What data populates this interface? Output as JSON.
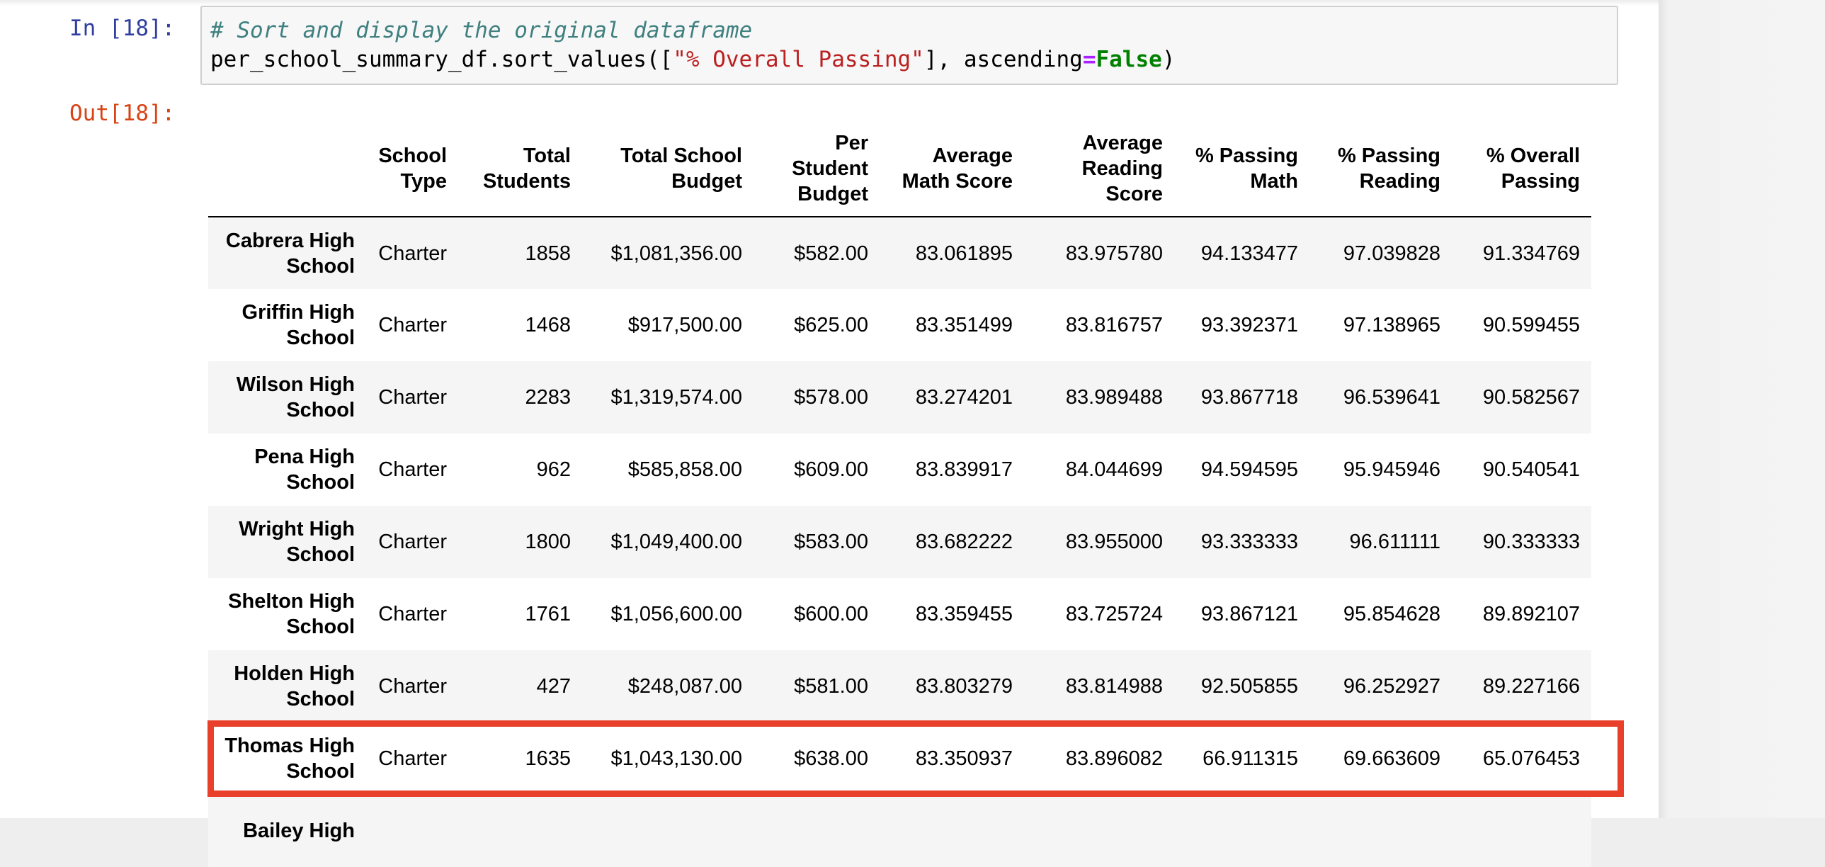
{
  "cell": {
    "in_prompt": "In [18]:",
    "out_prompt": "Out[18]:",
    "code": {
      "comment": "# Sort and display the original dataframe",
      "line2_prefix": "per_school_summary_df.sort_values([",
      "line2_string": "\"% Overall Passing\"",
      "line2_mid": "], ascending",
      "line2_op": "=",
      "line2_kw": "False",
      "line2_suffix": ")"
    }
  },
  "table": {
    "columns": [
      "School Type",
      "Total Students",
      "Total School Budget",
      "Per Student Budget",
      "Average Math Score",
      "Average Reading Score",
      "% Passing Math",
      "% Passing Reading",
      "% Overall Passing"
    ],
    "rows": [
      {
        "name": "Cabrera High School",
        "cells": [
          "Charter",
          "1858",
          "$1,081,356.00",
          "$582.00",
          "83.061895",
          "83.975780",
          "94.133477",
          "97.039828",
          "91.334769"
        ]
      },
      {
        "name": "Griffin High School",
        "cells": [
          "Charter",
          "1468",
          "$917,500.00",
          "$625.00",
          "83.351499",
          "83.816757",
          "93.392371",
          "97.138965",
          "90.599455"
        ]
      },
      {
        "name": "Wilson High School",
        "cells": [
          "Charter",
          "2283",
          "$1,319,574.00",
          "$578.00",
          "83.274201",
          "83.989488",
          "93.867718",
          "96.539641",
          "90.582567"
        ]
      },
      {
        "name": "Pena High School",
        "cells": [
          "Charter",
          "962",
          "$585,858.00",
          "$609.00",
          "83.839917",
          "84.044699",
          "94.594595",
          "95.945946",
          "90.540541"
        ]
      },
      {
        "name": "Wright High School",
        "cells": [
          "Charter",
          "1800",
          "$1,049,400.00",
          "$583.00",
          "83.682222",
          "83.955000",
          "93.333333",
          "96.611111",
          "90.333333"
        ]
      },
      {
        "name": "Shelton High School",
        "cells": [
          "Charter",
          "1761",
          "$1,056,600.00",
          "$600.00",
          "83.359455",
          "83.725724",
          "93.867121",
          "95.854628",
          "89.892107"
        ]
      },
      {
        "name": "Holden High School",
        "cells": [
          "Charter",
          "427",
          "$248,087.00",
          "$581.00",
          "83.803279",
          "83.814988",
          "92.505855",
          "96.252927",
          "89.227166"
        ]
      },
      {
        "name": "Thomas High School",
        "cells": [
          "Charter",
          "1635",
          "$1,043,130.00",
          "$638.00",
          "83.350937",
          "83.896082",
          "66.911315",
          "69.663609",
          "65.076453"
        ],
        "highlighted": true
      },
      {
        "name": "Bailey High",
        "cells": [
          "",
          "",
          "",
          "",
          "",
          "",
          "",
          "",
          ""
        ]
      }
    ]
  },
  "colors": {
    "highlight_border": "#e8402a",
    "in_prompt": "#303f9f",
    "out_prompt": "#d84315",
    "stripe": "#f5f5f5"
  }
}
